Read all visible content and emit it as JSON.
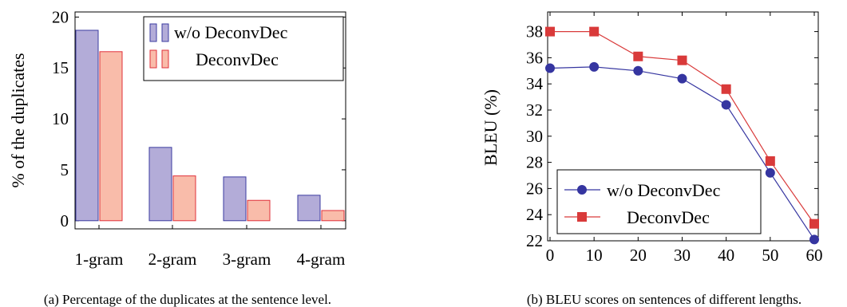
{
  "chart_data": [
    {
      "type": "bar",
      "caption": "(a) Percentage of the duplicates at the sentence level.",
      "categories": [
        "1-gram",
        "2-gram",
        "3-gram",
        "4-gram"
      ],
      "series": [
        {
          "name": "w/o DeconvDec",
          "color": "#b3acd8",
          "stroke": "#3b3ba0",
          "values": [
            18.7,
            7.2,
            4.3,
            2.5
          ]
        },
        {
          "name": "DeconvDec",
          "color": "#f9bcaa",
          "stroke": "#e0303a",
          "values": [
            16.6,
            4.4,
            2.0,
            1.0
          ]
        }
      ],
      "xlabel": "",
      "ylabel": "% of the duplicates",
      "ylim": [
        -0.8,
        20.5
      ],
      "yticks": [
        0,
        5,
        10,
        15,
        20
      ],
      "grid": false,
      "legend_position": "top-right"
    },
    {
      "type": "line",
      "caption": "(b) BLEU scores on sentences of different lengths.",
      "x": [
        0,
        10,
        20,
        30,
        40,
        50,
        60
      ],
      "series": [
        {
          "name": "w/o DeconvDec",
          "color": "#3535a0",
          "marker": "circle",
          "values": [
            35.2,
            35.3,
            35.0,
            34.4,
            32.4,
            27.2,
            22.1
          ]
        },
        {
          "name": "DeconvDec",
          "color": "#d93a3a",
          "marker": "square",
          "values": [
            38.0,
            38.0,
            36.1,
            35.8,
            33.6,
            28.1,
            23.3
          ]
        }
      ],
      "xlabel": "",
      "ylabel": "BLEU (%)",
      "xlim": [
        0,
        60
      ],
      "ylim": [
        22,
        39.5
      ],
      "xticks": [
        0,
        10,
        20,
        30,
        40,
        50,
        60
      ],
      "yticks": [
        22,
        24,
        26,
        28,
        30,
        32,
        34,
        36,
        38
      ],
      "grid": false,
      "legend_position": "bottom-left"
    }
  ]
}
